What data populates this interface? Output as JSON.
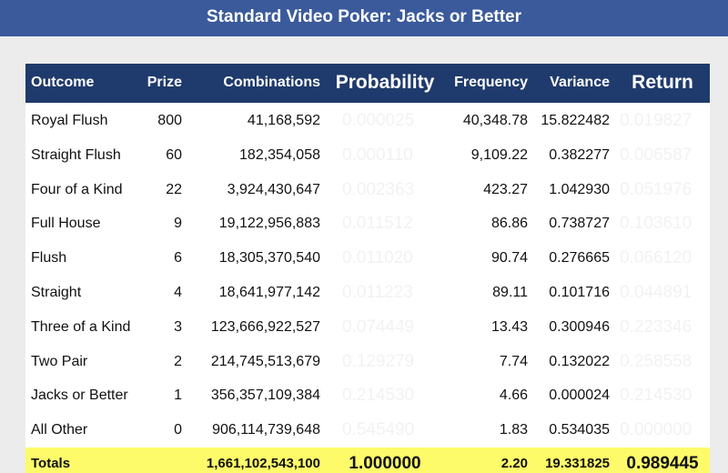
{
  "header": {
    "title": "Standard Video Poker: Jacks or Better"
  },
  "table": {
    "columns": [
      "Outcome",
      "Prize",
      "Combinations",
      "Probability",
      "Frequency",
      "Variance",
      "Return"
    ],
    "rows": [
      [
        "Royal Flush",
        "800",
        "41,168,592",
        "0.000025",
        "40,348.78",
        "15.822482",
        "0.019827"
      ],
      [
        "Straight Flush",
        "60",
        "182,354,058",
        "0.000110",
        "9,109.22",
        "0.382277",
        "0.006587"
      ],
      [
        "Four of a Kind",
        "22",
        "3,924,430,647",
        "0.002363",
        "423.27",
        "1.042930",
        "0.051976"
      ],
      [
        "Full House",
        "9",
        "19,122,956,883",
        "0.011512",
        "86.86",
        "0.738727",
        "0.103610"
      ],
      [
        "Flush",
        "6",
        "18,305,370,540",
        "0.011020",
        "90.74",
        "0.276665",
        "0.066120"
      ],
      [
        "Straight",
        "4",
        "18,641,977,142",
        "0.011223",
        "89.11",
        "0.101716",
        "0.044891"
      ],
      [
        "Three of a Kind",
        "3",
        "123,666,922,527",
        "0.074449",
        "13.43",
        "0.300946",
        "0.223346"
      ],
      [
        "Two Pair",
        "2",
        "214,745,513,679",
        "0.129279",
        "7.74",
        "0.132022",
        "0.258558"
      ],
      [
        "Jacks or Better",
        "1",
        "356,357,109,384",
        "0.214530",
        "4.66",
        "0.000024",
        "0.214530"
      ],
      [
        "All Other",
        "0",
        "906,114,739,648",
        "0.545490",
        "1.83",
        "0.534035",
        "0.000000"
      ]
    ],
    "totals": {
      "label": "Totals",
      "combinations": "1,661,102,543,100",
      "probability": "1.000000",
      "frequency": "2.20",
      "variance": "19.331825",
      "return": "0.989445"
    }
  }
}
